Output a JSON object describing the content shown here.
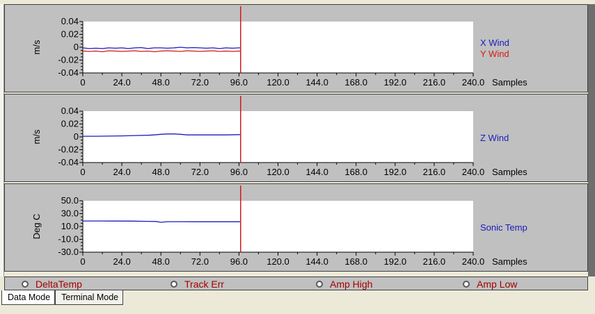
{
  "chart_data": [
    {
      "type": "line",
      "ylabel": "m/s",
      "xlabel": "Samples",
      "xlim": [
        0,
        240
      ],
      "ylim": [
        -0.04,
        0.04
      ],
      "xticks": [
        "0",
        "24.0",
        "48.0",
        "72.0",
        "96.0",
        "120.0",
        "144.0",
        "168.0",
        "192.0",
        "216.0",
        "240.0"
      ],
      "yticks": [
        "0.04",
        "0.02",
        "0",
        "-0.02",
        "-0.04"
      ],
      "cursor_x": 97,
      "series": [
        {
          "name": "X Wind",
          "color": "#1b1bbf",
          "x": [
            0,
            4,
            8,
            12,
            16,
            20,
            24,
            28,
            32,
            36,
            40,
            44,
            48,
            52,
            56,
            60,
            64,
            68,
            72,
            76,
            80,
            84,
            88,
            92,
            96,
            97
          ],
          "y": [
            -0.001,
            -0.002,
            -0.0015,
            -0.002,
            -0.001,
            -0.0015,
            -0.001,
            -0.002,
            -0.001,
            -0.0005,
            -0.002,
            -0.001,
            -0.001,
            -0.0015,
            -0.001,
            0,
            -0.001,
            -0.0005,
            -0.001,
            -0.0015,
            -0.001,
            -0.002,
            -0.001,
            -0.0015,
            -0.001,
            -0.001
          ]
        },
        {
          "name": "Y Wind",
          "color": "#d21a1a",
          "x": [
            0,
            4,
            8,
            12,
            16,
            20,
            24,
            28,
            32,
            36,
            40,
            44,
            48,
            52,
            56,
            60,
            64,
            68,
            72,
            76,
            80,
            84,
            88,
            92,
            96,
            97
          ],
          "y": [
            -0.006,
            -0.0065,
            -0.006,
            -0.007,
            -0.0055,
            -0.006,
            -0.0065,
            -0.006,
            -0.0055,
            -0.0065,
            -0.006,
            -0.007,
            -0.006,
            -0.0055,
            -0.006,
            -0.0065,
            -0.0055,
            -0.006,
            -0.0065,
            -0.006,
            -0.0055,
            -0.0065,
            -0.006,
            -0.0065,
            -0.006,
            -0.006
          ]
        }
      ]
    },
    {
      "type": "line",
      "ylabel": "m/s",
      "xlabel": "Samples",
      "xlim": [
        0,
        240
      ],
      "ylim": [
        -0.04,
        0.04
      ],
      "xticks": [
        "0",
        "24.0",
        "48.0",
        "72.0",
        "96.0",
        "120.0",
        "144.0",
        "168.0",
        "192.0",
        "216.0",
        "240.0"
      ],
      "yticks": [
        "0.04",
        "0.02",
        "0",
        "-0.02",
        "-0.04"
      ],
      "cursor_x": 97,
      "series": [
        {
          "name": "Z Wind",
          "color": "#1b1bbf",
          "x": [
            0,
            8,
            16,
            24,
            32,
            40,
            44,
            48,
            52,
            56,
            60,
            64,
            68,
            72,
            80,
            88,
            96,
            97
          ],
          "y": [
            0.001,
            0.001,
            0.0012,
            0.0015,
            0.002,
            0.0025,
            0.003,
            0.004,
            0.0045,
            0.0045,
            0.004,
            0.003,
            0.003,
            0.003,
            0.003,
            0.003,
            0.0035,
            0.0035
          ]
        }
      ]
    },
    {
      "type": "line",
      "ylabel": "Deg C",
      "xlabel": "Samples",
      "xlim": [
        0,
        240
      ],
      "ylim": [
        -30,
        50
      ],
      "xticks": [
        "0",
        "24.0",
        "48.0",
        "72.0",
        "96.0",
        "120.0",
        "144.0",
        "168.0",
        "192.0",
        "216.0",
        "240.0"
      ],
      "yticks": [
        "50.0",
        "30.0",
        "10.0",
        "-10.0",
        "-30.0"
      ],
      "cursor_x": 97,
      "series": [
        {
          "name": "Sonic Temp",
          "color": "#1b1bbf",
          "x": [
            0,
            10,
            20,
            30,
            40,
            45,
            48,
            52,
            60,
            70,
            80,
            90,
            97
          ],
          "y": [
            18.5,
            18.5,
            18.4,
            18.3,
            18.0,
            17.8,
            16.5,
            17.5,
            17.5,
            17.4,
            17.4,
            17.4,
            17.4
          ]
        }
      ]
    }
  ],
  "indicators": [
    {
      "label": "DeltaTemp"
    },
    {
      "label": "Track Err"
    },
    {
      "label": "Amp High"
    },
    {
      "label": "Amp Low"
    }
  ],
  "tabs": [
    {
      "label": "Data Mode",
      "active": true
    },
    {
      "label": "Terminal Mode",
      "active": false
    }
  ]
}
